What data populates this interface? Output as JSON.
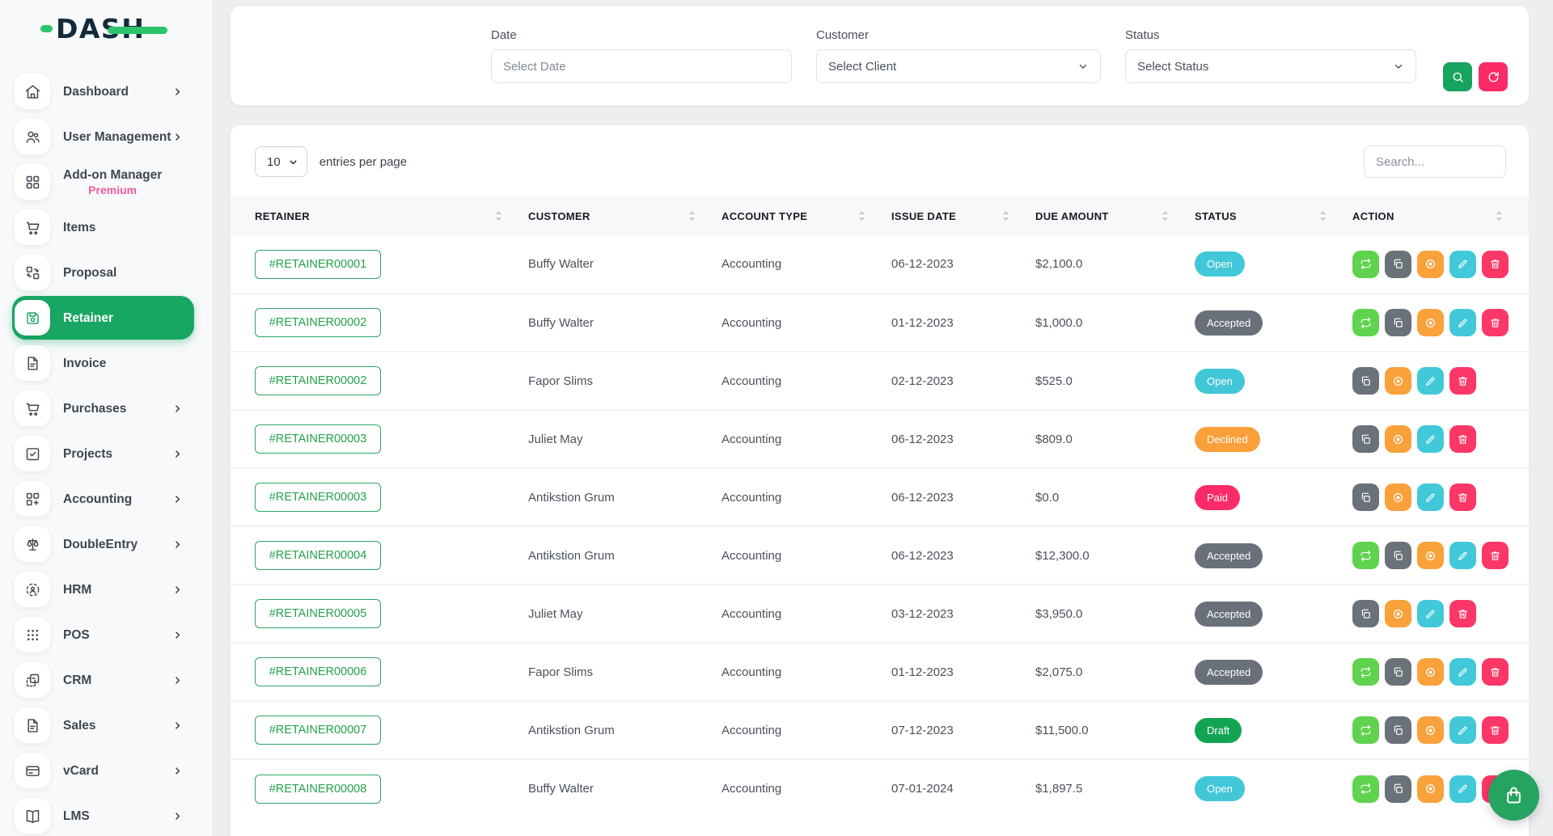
{
  "brand": {
    "name": "DASH"
  },
  "sidebar": {
    "items": [
      {
        "label": "Dashboard",
        "icon": "home-icon",
        "chevron": true
      },
      {
        "label": "User Management",
        "icon": "users-icon",
        "chevron": true
      },
      {
        "label": "Add-on Manager",
        "sublabel": "Premium",
        "icon": "grid-icon",
        "chevron": false
      },
      {
        "label": "Items",
        "icon": "cart-icon",
        "chevron": false
      },
      {
        "label": "Proposal",
        "icon": "swap-icon",
        "chevron": false
      },
      {
        "label": "Retainer",
        "icon": "save-icon",
        "chevron": false,
        "active": true
      },
      {
        "label": "Invoice",
        "icon": "file-icon",
        "chevron": false
      },
      {
        "label": "Purchases",
        "icon": "cart-icon",
        "chevron": true
      },
      {
        "label": "Projects",
        "icon": "check-square-icon",
        "chevron": true
      },
      {
        "label": "Accounting",
        "icon": "grid-plus-icon",
        "chevron": true
      },
      {
        "label": "DoubleEntry",
        "icon": "scale-icon",
        "chevron": true
      },
      {
        "label": "HRM",
        "icon": "person-dashed-icon",
        "chevron": true
      },
      {
        "label": "POS",
        "icon": "dots-icon",
        "chevron": true
      },
      {
        "label": "CRM",
        "icon": "copy-squares-icon",
        "chevron": true
      },
      {
        "label": "Sales",
        "icon": "file-icon",
        "chevron": true
      },
      {
        "label": "vCard",
        "icon": "card-icon",
        "chevron": true
      },
      {
        "label": "LMS",
        "icon": "book-icon",
        "chevron": true
      }
    ]
  },
  "filters": {
    "date": {
      "label": "Date",
      "placeholder": "Select Date"
    },
    "customer": {
      "label": "Customer",
      "value": "Select Client"
    },
    "status": {
      "label": "Status",
      "value": "Select Status"
    }
  },
  "table": {
    "entries_per_page": "10",
    "entries_label": "entries per page",
    "search_placeholder": "Search...",
    "columns": [
      "RETAINER",
      "CUSTOMER",
      "ACCOUNT TYPE",
      "ISSUE DATE",
      "DUE AMOUNT",
      "STATUS",
      "ACTION"
    ],
    "rows": [
      {
        "retainer": "#RETAINER00001",
        "customer": "Buffy Walter",
        "account_type": "Accounting",
        "issue_date": "06-12-2023",
        "due_amount": "$2,100.0",
        "status": "Open",
        "actions": [
          "convert",
          "duplicate",
          "view",
          "edit",
          "delete"
        ]
      },
      {
        "retainer": "#RETAINER00002",
        "customer": "Buffy Walter",
        "account_type": "Accounting",
        "issue_date": "01-12-2023",
        "due_amount": "$1,000.0",
        "status": "Accepted",
        "actions": [
          "convert",
          "duplicate",
          "view",
          "edit",
          "delete"
        ]
      },
      {
        "retainer": "#RETAINER00002",
        "customer": "Fapor Slims",
        "account_type": "Accounting",
        "issue_date": "02-12-2023",
        "due_amount": "$525.0",
        "status": "Open",
        "actions": [
          "duplicate",
          "view",
          "edit",
          "delete"
        ]
      },
      {
        "retainer": "#RETAINER00003",
        "customer": "Juliet May",
        "account_type": "Accounting",
        "issue_date": "06-12-2023",
        "due_amount": "$809.0",
        "status": "Declined",
        "actions": [
          "duplicate",
          "view",
          "edit",
          "delete"
        ]
      },
      {
        "retainer": "#RETAINER00003",
        "customer": "Antikstion Grum",
        "account_type": "Accounting",
        "issue_date": "06-12-2023",
        "due_amount": "$0.0",
        "status": "Paid",
        "actions": [
          "duplicate",
          "view",
          "edit",
          "delete"
        ]
      },
      {
        "retainer": "#RETAINER00004",
        "customer": "Antikstion Grum",
        "account_type": "Accounting",
        "issue_date": "06-12-2023",
        "due_amount": "$12,300.0",
        "status": "Accepted",
        "actions": [
          "convert",
          "duplicate",
          "view",
          "edit",
          "delete"
        ]
      },
      {
        "retainer": "#RETAINER00005",
        "customer": "Juliet May",
        "account_type": "Accounting",
        "issue_date": "03-12-2023",
        "due_amount": "$3,950.0",
        "status": "Accepted",
        "actions": [
          "duplicate",
          "view",
          "edit",
          "delete"
        ]
      },
      {
        "retainer": "#RETAINER00006",
        "customer": "Fapor Slims",
        "account_type": "Accounting",
        "issue_date": "01-12-2023",
        "due_amount": "$2,075.0",
        "status": "Accepted",
        "actions": [
          "convert",
          "duplicate",
          "view",
          "edit",
          "delete"
        ]
      },
      {
        "retainer": "#RETAINER00007",
        "customer": "Antikstion Grum",
        "account_type": "Accounting",
        "issue_date": "07-12-2023",
        "due_amount": "$11,500.0",
        "status": "Draft",
        "actions": [
          "convert",
          "duplicate",
          "view",
          "edit",
          "delete"
        ]
      },
      {
        "retainer": "#RETAINER00008",
        "customer": "Buffy Walter",
        "account_type": "Accounting",
        "issue_date": "07-01-2024",
        "due_amount": "$1,897.5",
        "status": "Open",
        "actions": [
          "convert",
          "duplicate",
          "view",
          "edit",
          "delete"
        ]
      }
    ]
  },
  "colors": {
    "accent_green": "#18a762",
    "logo_green": "#2bc46a",
    "premium_pink": "#ee5b9e",
    "status": {
      "Open": "#41c7d8",
      "Accepted": "#69707a",
      "Declined": "#f9a03a",
      "Paid": "#fb2b69",
      "Draft": "#13a453"
    },
    "actions": {
      "convert": "#5fd34d",
      "duplicate": "#6a7178",
      "view": "#f9a13a",
      "edit": "#41c9da",
      "delete": "#fb3767"
    },
    "search_button": "#17a45f",
    "reset_button": "#fb2b69",
    "fab_green": "#27a361"
  }
}
